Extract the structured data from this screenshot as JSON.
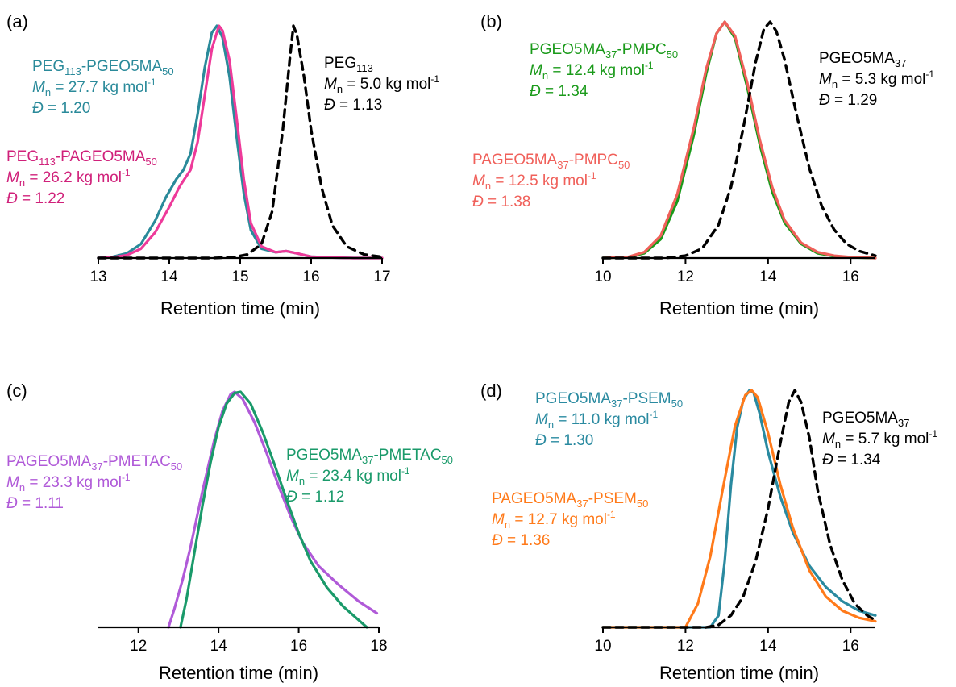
{
  "chart_data": [
    {
      "panel_label": "(a)",
      "type": "line",
      "xlabel": "Retention time (min)",
      "xlim": [
        13,
        17
      ],
      "xticks": [
        13,
        14,
        15,
        16,
        17
      ],
      "series": [
        {
          "name": "PEG113",
          "color": "#000000",
          "dashed": true,
          "x": [
            13.0,
            14.6,
            14.9,
            15.1,
            15.3,
            15.45,
            15.6,
            15.7,
            15.75,
            15.8,
            15.9,
            16.0,
            16.15,
            16.3,
            16.5,
            16.75,
            17.0
          ],
          "y": [
            0,
            0,
            0.003,
            0.015,
            0.06,
            0.2,
            0.55,
            0.86,
            1.0,
            0.96,
            0.78,
            0.55,
            0.3,
            0.14,
            0.05,
            0.015,
            0.005
          ]
        },
        {
          "name": "PEG113-PGEO5MA50",
          "color": "#2a8a9a",
          "dashed": false,
          "x": [
            13.0,
            13.2,
            13.4,
            13.6,
            13.8,
            13.95,
            14.1,
            14.2,
            14.3,
            14.4,
            14.5,
            14.6,
            14.67,
            14.75,
            14.85,
            14.95,
            15.05,
            15.15,
            15.3,
            15.5,
            15.65,
            15.8,
            16.0,
            16.3,
            16.6,
            17.0
          ],
          "y": [
            0,
            0.005,
            0.02,
            0.06,
            0.16,
            0.26,
            0.34,
            0.38,
            0.45,
            0.62,
            0.82,
            0.97,
            1.0,
            0.95,
            0.78,
            0.52,
            0.28,
            0.12,
            0.04,
            0.025,
            0.03,
            0.02,
            0.006,
            0.002,
            0,
            0
          ]
        },
        {
          "name": "PEG113-PAGEO5MA50",
          "color": "#ee3a9a",
          "dashed": false,
          "x": [
            13.0,
            13.2,
            13.4,
            13.6,
            13.8,
            14.0,
            14.15,
            14.3,
            14.4,
            14.5,
            14.6,
            14.7,
            14.75,
            14.85,
            14.95,
            15.05,
            15.15,
            15.3,
            15.5,
            15.65,
            15.8,
            16.0,
            16.3,
            16.6,
            17.0
          ],
          "y": [
            0,
            0.003,
            0.012,
            0.04,
            0.11,
            0.22,
            0.31,
            0.38,
            0.5,
            0.7,
            0.9,
            1.0,
            0.98,
            0.85,
            0.6,
            0.34,
            0.15,
            0.05,
            0.025,
            0.03,
            0.02,
            0.006,
            0.002,
            0,
            0
          ]
        }
      ],
      "annotations": [
        {
          "base": "PEG",
          "sub": "113",
          "rest": "-PGEO5MA",
          "sub2": "50",
          "mn": "27.7",
          "disp": "1.20",
          "color": "#2a8a9a"
        },
        {
          "base": "PEG",
          "sub": "113",
          "rest": "-PAGEO5MA",
          "sub2": "50",
          "mn": "26.2",
          "disp": "1.22",
          "color": "#d0207a"
        },
        {
          "base": "PEG",
          "sub": "113",
          "rest": "",
          "sub2": "",
          "mn": "5.0",
          "disp": "1.13",
          "color": "#000000"
        }
      ]
    },
    {
      "panel_label": "(b)",
      "type": "line",
      "xlabel": "Retention time (min)",
      "xlim": [
        10,
        16.6
      ],
      "xticks": [
        10,
        12,
        14,
        16
      ],
      "series": [
        {
          "name": "PGEO5MA37",
          "color": "#000000",
          "dashed": true,
          "x": [
            10.0,
            11.5,
            12.0,
            12.4,
            12.8,
            13.1,
            13.4,
            13.7,
            13.9,
            14.05,
            14.2,
            14.4,
            14.7,
            15.0,
            15.3,
            15.6,
            15.9,
            16.2,
            16.6
          ],
          "y": [
            0,
            0,
            0.01,
            0.04,
            0.14,
            0.3,
            0.55,
            0.83,
            0.97,
            1.0,
            0.96,
            0.84,
            0.6,
            0.38,
            0.22,
            0.12,
            0.06,
            0.03,
            0.01
          ]
        },
        {
          "name": "PGEO5MA37-PMPC50",
          "color": "#1a9a1a",
          "dashed": false,
          "x": [
            10.0,
            10.6,
            11.0,
            11.4,
            11.8,
            12.2,
            12.5,
            12.75,
            12.95,
            13.2,
            13.5,
            13.8,
            14.1,
            14.4,
            14.8,
            15.2,
            15.6,
            16.0,
            16.6
          ],
          "y": [
            0,
            0.003,
            0.02,
            0.08,
            0.24,
            0.52,
            0.78,
            0.95,
            1.0,
            0.93,
            0.72,
            0.48,
            0.28,
            0.15,
            0.06,
            0.02,
            0.008,
            0.003,
            0
          ]
        },
        {
          "name": "PAGEO5MA37-PMPC50",
          "color": "#f0605a",
          "dashed": false,
          "x": [
            10.0,
            10.6,
            11.0,
            11.4,
            11.8,
            12.2,
            12.5,
            12.75,
            12.95,
            13.2,
            13.5,
            13.8,
            14.1,
            14.4,
            14.8,
            15.2,
            15.6,
            16.0,
            16.6
          ],
          "y": [
            0,
            0.004,
            0.025,
            0.095,
            0.27,
            0.55,
            0.8,
            0.95,
            1.0,
            0.94,
            0.74,
            0.5,
            0.3,
            0.16,
            0.065,
            0.025,
            0.01,
            0.004,
            0
          ]
        }
      ],
      "annotations": [
        {
          "base": "PGEO5MA",
          "sub": "37",
          "rest": "-PMPC",
          "sub2": "50",
          "mn": "12.4",
          "disp": "1.34",
          "color": "#1a9a1a"
        },
        {
          "base": "PAGEO5MA",
          "sub": "37",
          "rest": "-PMPC",
          "sub2": "50",
          "mn": "12.5",
          "disp": "1.38",
          "color": "#f0605a"
        },
        {
          "base": "PGEO5MA",
          "sub": "37",
          "rest": "",
          "sub2": "",
          "mn": "5.3",
          "disp": "1.29",
          "color": "#000000"
        }
      ]
    },
    {
      "panel_label": "(c)",
      "type": "line",
      "xlabel": "Retention time (min)",
      "xlim": [
        11,
        18
      ],
      "xticks": [
        12,
        14,
        16,
        18
      ],
      "series": [
        {
          "name": "PAGEO5MA37-PMETAC50",
          "color": "#b05ad8",
          "dashed": false,
          "x": [
            12.75,
            12.9,
            13.1,
            13.3,
            13.6,
            13.9,
            14.1,
            14.3,
            14.4,
            14.6,
            14.9,
            15.2,
            15.5,
            15.8,
            16.1,
            16.5,
            17.0,
            17.5,
            17.95
          ],
          "y": [
            0,
            0.08,
            0.2,
            0.34,
            0.58,
            0.8,
            0.92,
            0.99,
            1.0,
            0.97,
            0.87,
            0.74,
            0.6,
            0.47,
            0.36,
            0.26,
            0.18,
            0.11,
            0.06
          ]
        },
        {
          "name": "PGEO5MA37-PMETAC50",
          "color": "#1a9a6a",
          "dashed": false,
          "x": [
            13.05,
            13.2,
            13.4,
            13.6,
            13.8,
            14.0,
            14.2,
            14.4,
            14.55,
            14.8,
            15.1,
            15.4,
            15.7,
            16.0,
            16.3,
            16.7,
            17.1,
            17.5,
            17.7
          ],
          "y": [
            0,
            0.12,
            0.32,
            0.52,
            0.7,
            0.85,
            0.95,
            0.995,
            1.0,
            0.95,
            0.83,
            0.69,
            0.54,
            0.4,
            0.28,
            0.17,
            0.09,
            0.03,
            0
          ]
        }
      ],
      "annotations": [
        {
          "base": "PAGEO5MA",
          "sub": "37",
          "rest": "-PMETAC",
          "sub2": "50",
          "mn": "23.3",
          "disp": "1.11",
          "color": "#b05ad8"
        },
        {
          "base": "PGEO5MA",
          "sub": "37",
          "rest": "-PMETAC",
          "sub2": "50",
          "mn": "23.4",
          "disp": "1.12",
          "color": "#1a9a6a"
        }
      ]
    },
    {
      "panel_label": "(d)",
      "type": "line",
      "xlabel": "Retention time (min)",
      "xlim": [
        10,
        16.6
      ],
      "xticks": [
        10,
        12,
        14,
        16
      ],
      "series": [
        {
          "name": "PGEO5MA37",
          "color": "#000000",
          "dashed": true,
          "x": [
            10.0,
            12.5,
            12.8,
            13.1,
            13.4,
            13.7,
            14.0,
            14.3,
            14.5,
            14.65,
            14.8,
            15.0,
            15.2,
            15.5,
            15.8,
            16.1,
            16.4,
            16.6
          ],
          "y": [
            0,
            0,
            0.01,
            0.05,
            0.13,
            0.28,
            0.5,
            0.78,
            0.95,
            1.0,
            0.95,
            0.8,
            0.58,
            0.35,
            0.2,
            0.1,
            0.05,
            0.03
          ]
        },
        {
          "name": "PGEO5MA37-PSEM50",
          "color": "#2a8aa0",
          "dashed": false,
          "x": [
            10.0,
            12.6,
            12.8,
            12.95,
            13.1,
            13.25,
            13.4,
            13.55,
            13.65,
            13.8,
            14.0,
            14.3,
            14.6,
            15.0,
            15.4,
            15.8,
            16.2,
            16.6
          ],
          "y": [
            0,
            0,
            0.05,
            0.28,
            0.6,
            0.84,
            0.96,
            1.0,
            0.99,
            0.9,
            0.74,
            0.55,
            0.4,
            0.26,
            0.17,
            0.11,
            0.07,
            0.05
          ]
        },
        {
          "name": "PAGEO5MA37-PSEM50",
          "color": "#ff7a1a",
          "dashed": false,
          "x": [
            10.0,
            12.0,
            12.3,
            12.6,
            12.9,
            13.2,
            13.45,
            13.6,
            13.75,
            14.0,
            14.3,
            14.6,
            15.0,
            15.4,
            15.8,
            16.2,
            16.6
          ],
          "y": [
            0,
            0,
            0.1,
            0.3,
            0.58,
            0.85,
            0.98,
            1.0,
            0.97,
            0.82,
            0.6,
            0.42,
            0.24,
            0.13,
            0.07,
            0.04,
            0.025
          ]
        }
      ],
      "annotations": [
        {
          "base": "PGEO5MA",
          "sub": "37",
          "rest": "-PSEM",
          "sub2": "50",
          "mn": "11.0",
          "disp": "1.30",
          "color": "#2a8aa0"
        },
        {
          "base": "PAGEO5MA",
          "sub": "37",
          "rest": "-PSEM",
          "sub2": "50",
          "mn": "12.7",
          "disp": "1.36",
          "color": "#ff7a1a"
        },
        {
          "base": "PGEO5MA",
          "sub": "37",
          "rest": "",
          "sub2": "",
          "mn": "5.7",
          "disp": "1.34",
          "color": "#000000"
        }
      ]
    }
  ],
  "text": {
    "mn_symbol": "M",
    "mn_sub": "n",
    "mn_unit": "kg mol",
    "mn_unit_sup": "-1",
    "disp_symbol": "Đ",
    "equals": " = "
  }
}
